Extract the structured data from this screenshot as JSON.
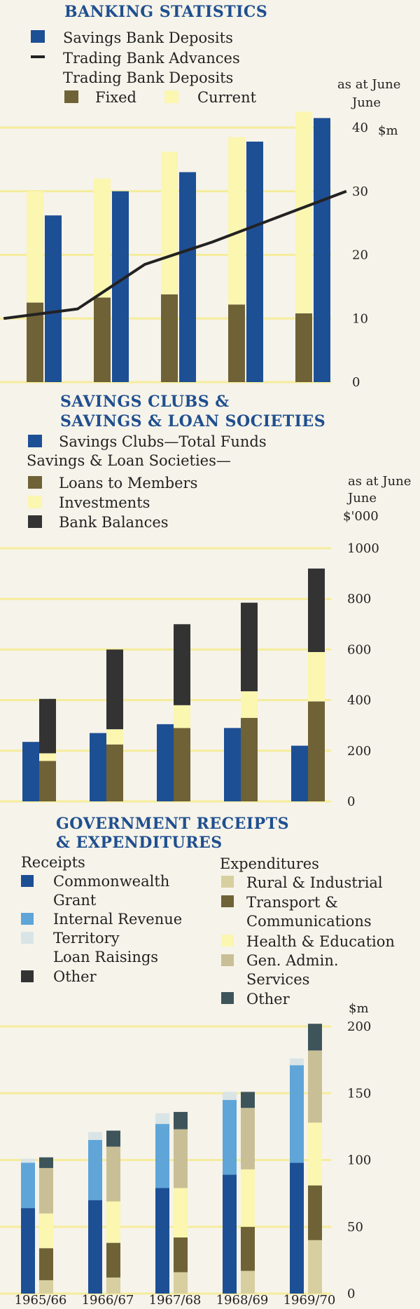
{
  "colors": {
    "background": "#f6f3ea",
    "grid": "#f5ec9c",
    "title": "#1f4f8f",
    "navy": "#1d4f95",
    "olive": "#6f6236",
    "cream": "#fbf6b0",
    "charcoal": "#333334",
    "lightblue": "#5fa5d8",
    "paleblue": "#d9e4e6",
    "khaki": "#d8cfa0",
    "tan": "#c9bf96",
    "teal": "#3d555a",
    "line": "#222222"
  },
  "x_categories": [
    "1965/66",
    "1966/67",
    "1967/68",
    "1968/69",
    "1969/70"
  ],
  "chart_data": [
    {
      "type": "bar",
      "title": "BANKING STATISTICS",
      "unit": "$m",
      "note": "as at June",
      "ylim": [
        0,
        40
      ],
      "ticks": [
        0,
        10,
        20,
        30,
        40
      ],
      "categories": [
        "1965/66",
        "1966/67",
        "1967/68",
        "1968/69",
        "1969/70"
      ],
      "legend": {
        "savings_deposits": "Savings Bank Deposits",
        "advances": "Trading Bank Advances",
        "deposits_heading": "Trading Bank Deposits",
        "fixed": "Fixed",
        "current": "Current"
      },
      "series": [
        {
          "name": "Fixed",
          "values": [
            12.5,
            13.3,
            13.8,
            12.2,
            10.8
          ]
        },
        {
          "name": "Current",
          "values": [
            17.5,
            18.7,
            22.4,
            26.3,
            31.7
          ]
        },
        {
          "name": "Savings Bank Deposits",
          "values": [
            26.2,
            30.0,
            33.0,
            37.8,
            41.5
          ]
        },
        {
          "name": "Trading Bank Advances",
          "x": [
            0.55,
            1.55,
            2.55,
            3.55,
            4.55
          ],
          "values": [
            11.5,
            18.5,
            22.0,
            26.0,
            30.0
          ],
          "x_start": -0.55,
          "y_start": 10.0
        }
      ]
    },
    {
      "type": "bar",
      "title_lines": [
        "SAVINGS CLUBS &",
        "SAVINGS & LOAN SOCIETIES"
      ],
      "unit": "$'000",
      "note": "as at June",
      "ylim": [
        0,
        1000
      ],
      "ticks": [
        0,
        200,
        400,
        600,
        800,
        1000
      ],
      "categories": [
        "1965/66",
        "1966/67",
        "1967/68",
        "1968/69",
        "1969/70"
      ],
      "legend": {
        "clubs": "Savings Clubs—Total Funds",
        "societies_heading": "Savings & Loan Societies—",
        "loans": "Loans to Members",
        "investments": "Investments",
        "balances": "Bank Balances"
      },
      "series": [
        {
          "name": "Savings Clubs—Total Funds",
          "values": [
            235,
            270,
            305,
            290,
            220
          ]
        },
        {
          "name": "Loans to Members",
          "values": [
            160,
            225,
            290,
            330,
            395
          ]
        },
        {
          "name": "Investments",
          "values": [
            30,
            60,
            90,
            105,
            195
          ]
        },
        {
          "name": "Bank Balances",
          "values": [
            215,
            315,
            320,
            350,
            330
          ]
        }
      ]
    },
    {
      "type": "bar",
      "title_lines": [
        "GOVERNMENT RECEIPTS",
        "& EXPENDITURES"
      ],
      "unit": "$m",
      "ylim": [
        0,
        200
      ],
      "ticks": [
        0,
        50,
        100,
        150,
        200
      ],
      "categories": [
        "1965/66",
        "1966/67",
        "1967/68",
        "1968/69",
        "1969/70"
      ],
      "legend": {
        "receipts_heading": "Receipts",
        "commonwealth": [
          "Commonwealth",
          "Grant"
        ],
        "internal": "Internal Revenue",
        "territory": [
          "Territory",
          "Loan Raisings"
        ],
        "other_r": "Other",
        "expenditures_heading": "Expenditures",
        "rural": "Rural & Industrial",
        "transport": [
          "Transport &",
          "Communications"
        ],
        "health": "Health & Education",
        "admin": [
          "Gen. Admin.",
          "Services"
        ],
        "other_e": "Other"
      },
      "receipts": [
        {
          "name": "Commonwealth Grant",
          "values": [
            64,
            70,
            79,
            89,
            98
          ]
        },
        {
          "name": "Internal Revenue",
          "values": [
            34,
            45,
            48,
            56,
            73
          ]
        },
        {
          "name": "Territory Loan Raisings",
          "values": [
            3,
            6,
            8,
            6,
            5
          ]
        },
        {
          "name": "Other",
          "values": [
            0,
            0,
            0,
            0,
            0
          ]
        }
      ],
      "expenditures": [
        {
          "name": "Rural & Industrial",
          "values": [
            10,
            12,
            16,
            17,
            40
          ]
        },
        {
          "name": "Transport & Communications",
          "values": [
            24,
            26,
            26,
            33,
            41
          ]
        },
        {
          "name": "Health & Education",
          "values": [
            26,
            31,
            37,
            43,
            47
          ]
        },
        {
          "name": "Gen. Admin. Services",
          "values": [
            34,
            41,
            44,
            46,
            54
          ]
        },
        {
          "name": "Other",
          "values": [
            8,
            12,
            13,
            12,
            20
          ]
        }
      ]
    }
  ]
}
